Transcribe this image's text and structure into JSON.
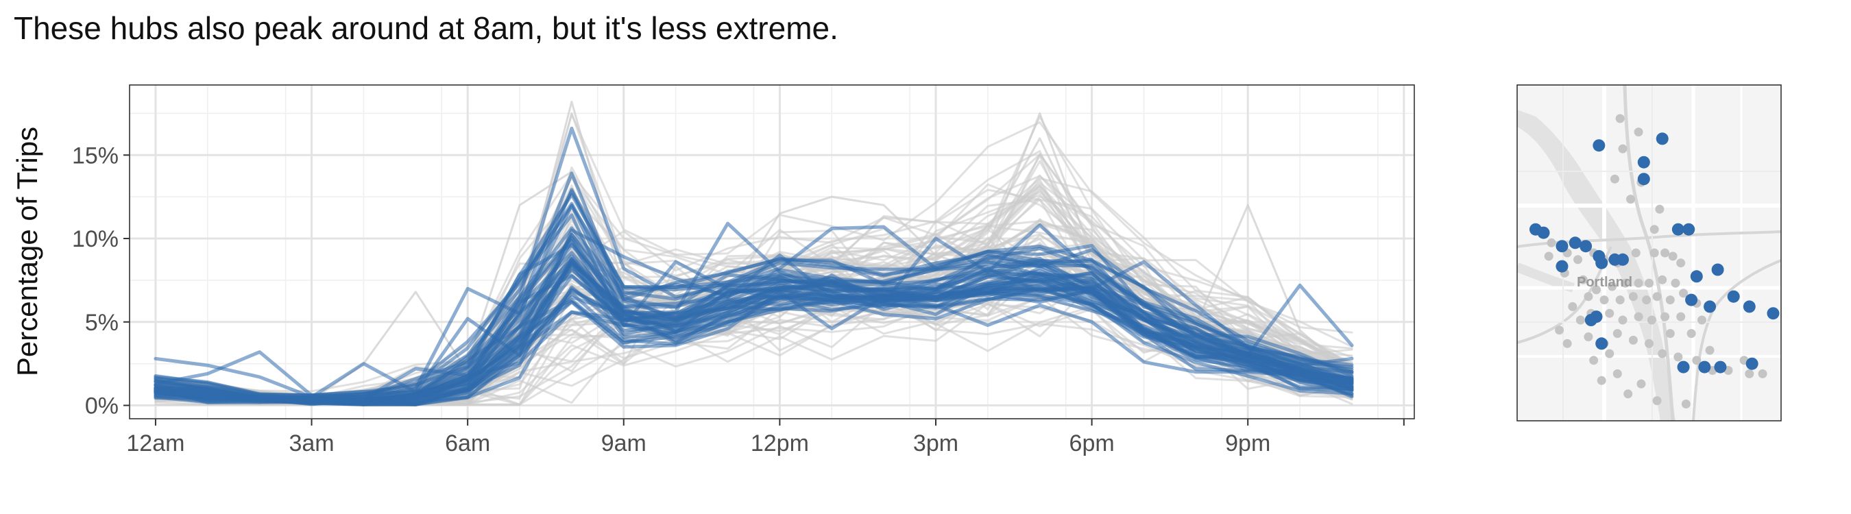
{
  "title": "These hubs also peak around at 8am, but it's less extreme.",
  "colors": {
    "highlight": "#2f6bad",
    "background_lines": "#cccccc",
    "grid_major": "#e3e3e3",
    "grid_minor": "#efefef",
    "map_bg": "#f4f4f4",
    "map_road": "#ffffff",
    "map_area": "#e4e4e4",
    "map_gray_point": "#c4c4c4"
  },
  "chart_data": {
    "type": "line",
    "ylabel": "Percentage of Trips",
    "xlabel": "",
    "x_unit": "hour of day",
    "x": [
      0,
      1,
      2,
      3,
      4,
      5,
      6,
      7,
      8,
      9,
      10,
      11,
      12,
      13,
      14,
      15,
      16,
      17,
      18,
      19,
      20,
      21,
      22,
      23
    ],
    "xlim": [
      -0.5,
      24.2
    ],
    "ylim": [
      -0.8,
      19.2
    ],
    "x_ticks": [
      {
        "x": 0,
        "label": "12am"
      },
      {
        "x": 3,
        "label": "3am"
      },
      {
        "x": 6,
        "label": "6am"
      },
      {
        "x": 9,
        "label": "9am"
      },
      {
        "x": 12,
        "label": "12pm"
      },
      {
        "x": 15,
        "label": "3pm"
      },
      {
        "x": 18,
        "label": "6pm"
      },
      {
        "x": 21,
        "label": "9pm"
      }
    ],
    "y_ticks": [
      {
        "y": 0,
        "label": "0%"
      },
      {
        "y": 5,
        "label": "5%"
      },
      {
        "y": 10,
        "label": "10%"
      },
      {
        "y": 15,
        "label": "15%"
      }
    ],
    "grid": true,
    "legend": "none",
    "background_profile": {
      "center": [
        0.8,
        0.6,
        0.4,
        0.3,
        0.3,
        0.4,
        1.0,
        3.6,
        7.5,
        5.8,
        5.6,
        6.0,
        6.7,
        7.1,
        7.2,
        7.4,
        8.3,
        9.7,
        8.0,
        6.2,
        4.6,
        3.6,
        2.5,
        1.6
      ],
      "spread": [
        0.6,
        0.5,
        0.3,
        0.3,
        0.5,
        1.0,
        1.6,
        3.3,
        4.7,
        2.6,
        2.1,
        2.2,
        2.4,
        2.4,
        2.4,
        2.6,
        3.4,
        4.4,
        2.8,
        2.2,
        2.0,
        1.9,
        1.5,
        1.2
      ],
      "n_series": 70
    },
    "background_series": [
      {
        "values": [
          1.0,
          0.6,
          0.4,
          0.3,
          0.3,
          0.5,
          1.4,
          6.0,
          18.2,
          7.0,
          6.0,
          5.8,
          6.5,
          7.0,
          7.2,
          7.6,
          9.5,
          17.5,
          9.0,
          6.0,
          4.5,
          3.5,
          2.4,
          1.4
        ]
      },
      {
        "values": [
          0.5,
          0.4,
          0.3,
          0.3,
          0.3,
          0.3,
          0.6,
          2.2,
          4.8,
          5.0,
          5.2,
          6.2,
          7.4,
          8.0,
          8.2,
          8.0,
          8.2,
          8.5,
          7.5,
          6.0,
          4.8,
          12.0,
          4.5,
          1.8
        ]
      },
      {
        "values": [
          1.2,
          0.8,
          0.5,
          0.4,
          0.3,
          0.8,
          2.5,
          12.0,
          14.0,
          6.5,
          6.0,
          6.0,
          7.0,
          7.0,
          7.5,
          7.8,
          10.5,
          16.0,
          9.5,
          6.0,
          4.0,
          3.0,
          2.0,
          1.2
        ]
      },
      {
        "values": [
          0.4,
          0.3,
          0.3,
          0.3,
          2.5,
          6.8,
          2.0,
          3.0,
          5.5,
          5.5,
          5.4,
          6.5,
          11.5,
          12.5,
          12.0,
          9.0,
          8.0,
          8.6,
          8.0,
          7.0,
          6.0,
          4.5,
          3.2,
          2.4
        ]
      }
    ],
    "highlight_profile": {
      "center": [
        1.0,
        0.7,
        0.4,
        0.3,
        0.3,
        0.5,
        1.6,
        5.0,
        9.0,
        5.6,
        5.2,
        6.4,
        7.1,
        7.0,
        6.6,
        6.9,
        7.4,
        7.8,
        7.1,
        5.2,
        3.7,
        2.9,
        2.0,
        1.3
      ],
      "spread": [
        0.5,
        0.4,
        0.2,
        0.2,
        0.3,
        0.5,
        1.0,
        1.8,
        2.2,
        1.3,
        1.3,
        1.2,
        1.0,
        1.0,
        0.9,
        1.1,
        1.3,
        1.3,
        1.3,
        1.2,
        1.0,
        0.8,
        0.8,
        0.6
      ],
      "n_series": 38
    },
    "highlight_series": [
      {
        "values": [
          2.8,
          2.4,
          1.7,
          0.5,
          0.4,
          2.2,
          1.8,
          6.5,
          16.6,
          8.2,
          6.5,
          7.2,
          8.2,
          10.6,
          10.7,
          8.2,
          8.8,
          9.4,
          8.2,
          6.0,
          4.2,
          3.2,
          2.2,
          1.6
        ]
      },
      {
        "values": [
          1.3,
          1.9,
          3.2,
          0.6,
          0.5,
          1.0,
          7.0,
          5.5,
          12.0,
          5.5,
          5.6,
          10.9,
          8.0,
          6.8,
          7.0,
          6.5,
          6.6,
          7.2,
          6.8,
          4.2,
          3.5,
          3.0,
          7.2,
          3.6
        ]
      },
      {
        "values": [
          1.0,
          0.8,
          0.5,
          0.5,
          2.5,
          0.8,
          5.2,
          3.0,
          10.5,
          8.9,
          7.6,
          6.5,
          9.0,
          6.5,
          6.4,
          7.5,
          8.2,
          8.8,
          7.0,
          8.6,
          6.0,
          3.5,
          2.5,
          1.4
        ]
      },
      {
        "values": [
          1.6,
          1.1,
          0.6,
          0.4,
          0.5,
          1.6,
          2.6,
          7.5,
          11.4,
          4.8,
          8.6,
          7.0,
          6.4,
          7.8,
          6.2,
          10.0,
          8.0,
          10.8,
          8.0,
          6.2,
          5.2,
          3.5,
          2.4,
          2.8
        ]
      },
      {
        "values": [
          0.7,
          0.5,
          0.3,
          0.3,
          0.3,
          0.5,
          1.0,
          3.5,
          6.2,
          3.5,
          3.6,
          4.6,
          6.8,
          4.6,
          6.5,
          6.0,
          4.8,
          6.0,
          5.0,
          2.6,
          2.0,
          2.0,
          1.8,
          0.6
        ]
      }
    ]
  },
  "map": {
    "label": "Portland",
    "gray_points": [
      [
        0.39,
        0.1
      ],
      [
        0.46,
        0.14
      ],
      [
        0.4,
        0.19
      ],
      [
        0.37,
        0.28
      ],
      [
        0.47,
        0.29
      ],
      [
        0.43,
        0.34
      ],
      [
        0.54,
        0.37
      ],
      [
        0.52,
        0.43
      ],
      [
        0.13,
        0.47
      ],
      [
        0.19,
        0.5
      ],
      [
        0.23,
        0.52
      ],
      [
        0.29,
        0.5
      ],
      [
        0.33,
        0.52
      ],
      [
        0.38,
        0.53
      ],
      [
        0.45,
        0.5
      ],
      [
        0.52,
        0.5
      ],
      [
        0.56,
        0.5
      ],
      [
        0.59,
        0.51
      ],
      [
        0.62,
        0.53
      ],
      [
        0.12,
        0.51
      ],
      [
        0.18,
        0.56
      ],
      [
        0.25,
        0.58
      ],
      [
        0.3,
        0.61
      ],
      [
        0.36,
        0.6
      ],
      [
        0.41,
        0.59
      ],
      [
        0.46,
        0.59
      ],
      [
        0.5,
        0.59
      ],
      [
        0.55,
        0.58
      ],
      [
        0.6,
        0.59
      ],
      [
        0.27,
        0.63
      ],
      [
        0.33,
        0.64
      ],
      [
        0.39,
        0.64
      ],
      [
        0.44,
        0.63
      ],
      [
        0.49,
        0.64
      ],
      [
        0.53,
        0.63
      ],
      [
        0.58,
        0.64
      ],
      [
        0.63,
        0.62
      ],
      [
        0.68,
        0.65
      ],
      [
        0.21,
        0.66
      ],
      [
        0.24,
        0.7
      ],
      [
        0.28,
        0.68
      ],
      [
        0.35,
        0.68
      ],
      [
        0.4,
        0.7
      ],
      [
        0.46,
        0.69
      ],
      [
        0.51,
        0.7
      ],
      [
        0.56,
        0.69
      ],
      [
        0.62,
        0.69
      ],
      [
        0.16,
        0.73
      ],
      [
        0.19,
        0.77
      ],
      [
        0.27,
        0.75
      ],
      [
        0.33,
        0.77
      ],
      [
        0.38,
        0.74
      ],
      [
        0.44,
        0.76
      ],
      [
        0.5,
        0.77
      ],
      [
        0.55,
        0.8
      ],
      [
        0.61,
        0.81
      ],
      [
        0.68,
        0.82
      ],
      [
        0.73,
        0.79
      ],
      [
        0.74,
        0.85
      ],
      [
        0.8,
        0.85
      ],
      [
        0.86,
        0.82
      ],
      [
        0.88,
        0.86
      ],
      [
        0.93,
        0.86
      ],
      [
        0.32,
        0.88
      ],
      [
        0.38,
        0.86
      ],
      [
        0.47,
        0.89
      ],
      [
        0.53,
        0.94
      ],
      [
        0.64,
        0.95
      ],
      [
        0.42,
        0.92
      ],
      [
        0.35,
        0.8
      ],
      [
        0.29,
        0.82
      ],
      [
        0.58,
        0.74
      ],
      [
        0.66,
        0.74
      ],
      [
        0.7,
        0.7
      ]
    ],
    "blue_points": [
      [
        0.31,
        0.18
      ],
      [
        0.55,
        0.16
      ],
      [
        0.48,
        0.23
      ],
      [
        0.48,
        0.28
      ],
      [
        0.07,
        0.43
      ],
      [
        0.1,
        0.44
      ],
      [
        0.61,
        0.43
      ],
      [
        0.65,
        0.43
      ],
      [
        0.17,
        0.48
      ],
      [
        0.22,
        0.47
      ],
      [
        0.26,
        0.48
      ],
      [
        0.31,
        0.51
      ],
      [
        0.32,
        0.53
      ],
      [
        0.37,
        0.52
      ],
      [
        0.4,
        0.52
      ],
      [
        0.17,
        0.54
      ],
      [
        0.68,
        0.57
      ],
      [
        0.76,
        0.55
      ],
      [
        0.66,
        0.64
      ],
      [
        0.73,
        0.66
      ],
      [
        0.82,
        0.63
      ],
      [
        0.88,
        0.66
      ],
      [
        0.97,
        0.68
      ],
      [
        0.28,
        0.7
      ],
      [
        0.3,
        0.69
      ],
      [
        0.32,
        0.77
      ],
      [
        0.63,
        0.84
      ],
      [
        0.71,
        0.84
      ],
      [
        0.77,
        0.84
      ],
      [
        0.89,
        0.83
      ]
    ]
  }
}
